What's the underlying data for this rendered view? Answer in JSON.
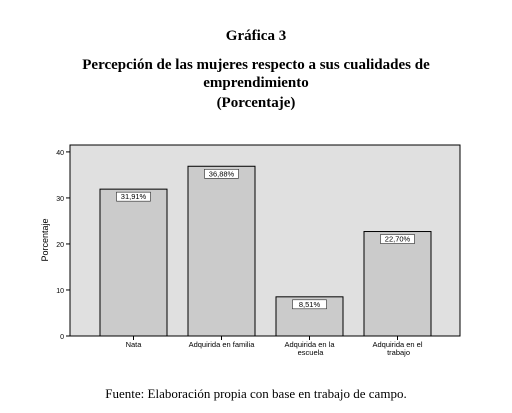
{
  "chart_data": {
    "type": "bar",
    "heading": "Gráfica 3",
    "title_lines": [
      "Percepción de las mujeres respecto a sus cualidades de",
      "emprendimiento",
      "(Porcentaje)"
    ],
    "ylabel": "Porcentaje",
    "categories": [
      "Nata",
      "Adquirida en familia",
      "Adquirida en la escuela",
      "Adquirida en el trabajo"
    ],
    "values": [
      31.91,
      36.88,
      8.51,
      22.7
    ],
    "value_labels": [
      "31,91%",
      "36,88%",
      "8,51%",
      "22,70%"
    ],
    "color": "#cbcbcb",
    "ylim": [
      0,
      41.5
    ],
    "yticks": [
      0,
      10,
      20,
      30,
      40
    ],
    "source": "Fuente: Elaboración propia con base en trabajo de campo."
  }
}
